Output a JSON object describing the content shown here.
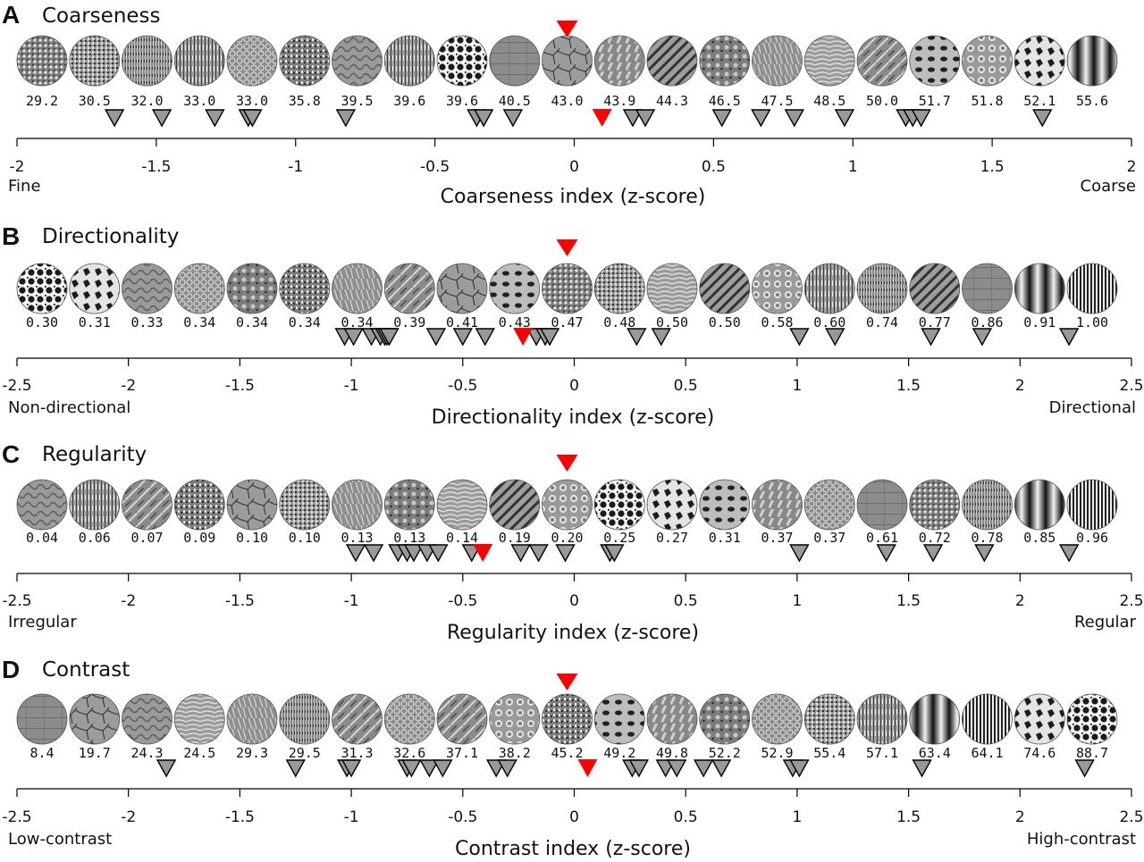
{
  "chart_data": [
    {
      "type": "scatter",
      "letter": "A",
      "title": "Coarseness",
      "texture_values": [
        "29.2",
        "30.5",
        "32.0",
        "33.0",
        "33.0",
        "35.8",
        "39.5",
        "39.6",
        "39.6",
        "40.5",
        "43.0",
        "43.9",
        "44.3",
        "46.5",
        "47.5",
        "48.5",
        "50.0",
        "51.7",
        "51.8",
        "52.1",
        "55.6"
      ],
      "sample_z": [
        -1.65,
        -1.48,
        -1.29,
        -1.17,
        -1.155,
        -0.82,
        -0.35,
        -0.325,
        -0.22,
        0.21,
        0.255,
        0.53,
        0.67,
        0.79,
        0.97,
        1.19,
        1.215,
        1.245,
        1.68
      ],
      "mean_z": 0.1,
      "reference_index": 10,
      "xlim": [
        -2,
        2
      ],
      "ticks": [
        -2,
        -1.5,
        -1,
        -0.5,
        0,
        0.5,
        1,
        1.5,
        2
      ],
      "tick_labels": [
        "-2",
        "-1.5",
        "-1",
        "-0.5",
        "0",
        "0.5",
        "1",
        "1.5",
        "2"
      ],
      "xlabel": "Coarseness index (z-score)",
      "left_label": "Fine",
      "right_label": "Coarse"
    },
    {
      "type": "scatter",
      "letter": "B",
      "title": "Directionality",
      "texture_values": [
        "0.30",
        "0.31",
        "0.33",
        "0.34",
        "0.34",
        "0.34",
        "0.34",
        "0.39",
        "0.41",
        "0.43",
        "0.47",
        "0.48",
        "0.50",
        "0.50",
        "0.58",
        "0.60",
        "0.74",
        "0.77",
        "0.86",
        "0.91",
        "1.00"
      ],
      "sample_z": [
        -1.03,
        -0.99,
        -0.91,
        -0.87,
        -0.85,
        -0.84,
        -0.83,
        -0.62,
        -0.5,
        -0.4,
        -0.17,
        -0.13,
        -0.11,
        0.28,
        0.39,
        1.01,
        1.17,
        1.6,
        1.83,
        2.22
      ],
      "mean_z": -0.23,
      "reference_index": 10,
      "xlim": [
        -2.5,
        2.5
      ],
      "ticks": [
        -2.5,
        -2,
        -1.5,
        -1,
        -0.5,
        0,
        0.5,
        1,
        1.5,
        2,
        2.5
      ],
      "tick_labels": [
        "-2.5",
        "-2",
        "-1.5",
        "-1",
        "-0.5",
        "0",
        "0.5",
        "1",
        "1.5",
        "2",
        "2.5"
      ],
      "xlabel": "Directionality index (z-score)",
      "left_label": "Non-directional",
      "right_label": "Directional"
    },
    {
      "type": "scatter",
      "letter": "C",
      "title": "Regularity",
      "texture_values": [
        "0.04",
        "0.06",
        "0.07",
        "0.09",
        "0.10",
        "0.10",
        "0.13",
        "0.13",
        "0.14",
        "0.19",
        "0.20",
        "0.25",
        "0.27",
        "0.31",
        "0.37",
        "0.37",
        "0.61",
        "0.72",
        "0.78",
        "0.85",
        "0.96"
      ],
      "sample_z": [
        -0.98,
        -0.9,
        -0.79,
        -0.75,
        -0.72,
        -0.66,
        -0.61,
        -0.46,
        -0.24,
        -0.16,
        -0.04,
        0.16,
        0.18,
        1.01,
        1.4,
        1.61,
        1.84,
        2.22
      ],
      "mean_z": -0.41,
      "reference_index": 10,
      "xlim": [
        -2.5,
        2.5
      ],
      "ticks": [
        -2.5,
        -2,
        -1.5,
        -1,
        -0.5,
        0,
        0.5,
        1,
        1.5,
        2,
        2.5
      ],
      "tick_labels": [
        "-2.5",
        "-2",
        "-1.5",
        "-1",
        "-0.5",
        "0",
        "0.5",
        "1",
        "1.5",
        "2",
        "2.5"
      ],
      "xlabel": "Regularity index (z-score)",
      "left_label": "Irregular",
      "right_label": "Regular"
    },
    {
      "type": "scatter",
      "letter": "D",
      "title": "Contrast",
      "texture_values": [
        "8.4",
        "19.7",
        "24.3",
        "24.5",
        "29.3",
        "29.5",
        "31.3",
        "32.6",
        "37.1",
        "38.2",
        "45.2",
        "49.2",
        "49.8",
        "52.2",
        "52.9",
        "55.4",
        "57.1",
        "63.4",
        "64.1",
        "74.6",
        "88.7"
      ],
      "sample_z": [
        -1.83,
        -1.25,
        -1.02,
        -1.0,
        -0.75,
        -0.73,
        -0.65,
        -0.59,
        -0.35,
        -0.3,
        0.26,
        0.29,
        0.41,
        0.46,
        0.58,
        0.66,
        0.98,
        1.01,
        1.56,
        2.29
      ],
      "mean_z": 0.06,
      "reference_index": 10,
      "xlim": [
        -2.5,
        2.5
      ],
      "ticks": [
        -2.5,
        -2,
        -1.5,
        -1,
        -0.5,
        0,
        0.5,
        1,
        1.5,
        2,
        2.5
      ],
      "tick_labels": [
        "-2.5",
        "-2",
        "-1.5",
        "-1",
        "-0.5",
        "0",
        "0.5",
        "1",
        "1.5",
        "2",
        "2.5"
      ],
      "xlabel": "Contrast index (z-score)",
      "left_label": "Low-contrast",
      "right_label": "High-contrast"
    }
  ],
  "colors": {
    "sample_marker": "#999999",
    "mean_marker": "#ff0000",
    "axis": "#000000"
  }
}
